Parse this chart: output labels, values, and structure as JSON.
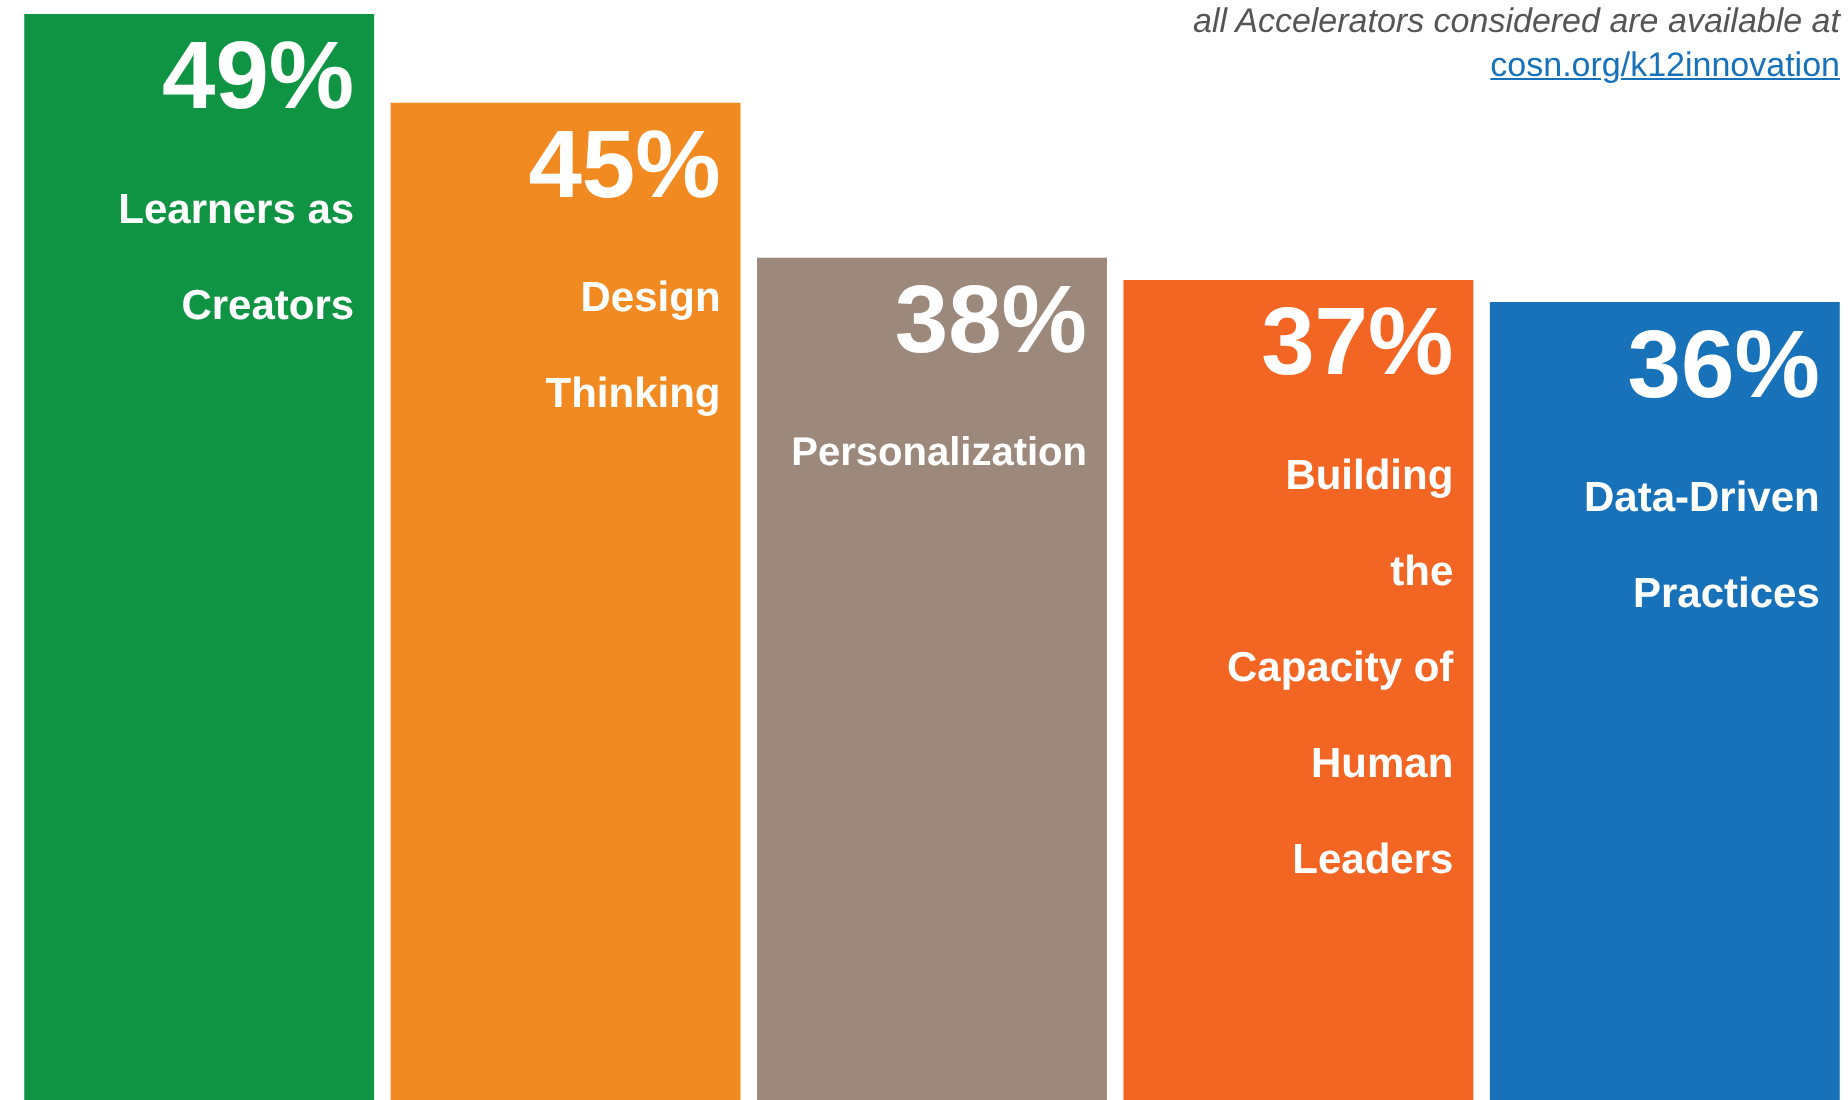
{
  "chart_data": {
    "type": "bar",
    "categories": [
      "Learners as Creators",
      "Design Thinking",
      "Personalization",
      "Building the Capacity of Human Leaders",
      "Data-Driven Practices"
    ],
    "values": [
      49,
      45,
      38,
      37,
      36
    ],
    "colors": [
      "#0f9444",
      "#f28a22",
      "#9c897b",
      "#f26522",
      "#1772b9"
    ],
    "value_labels": [
      "49%",
      "45%",
      "38%",
      "37%",
      "36%"
    ],
    "annotations": [
      "all Accelerators considered are available at",
      "cosn.org/k12innovation"
    ],
    "legend": false
  }
}
